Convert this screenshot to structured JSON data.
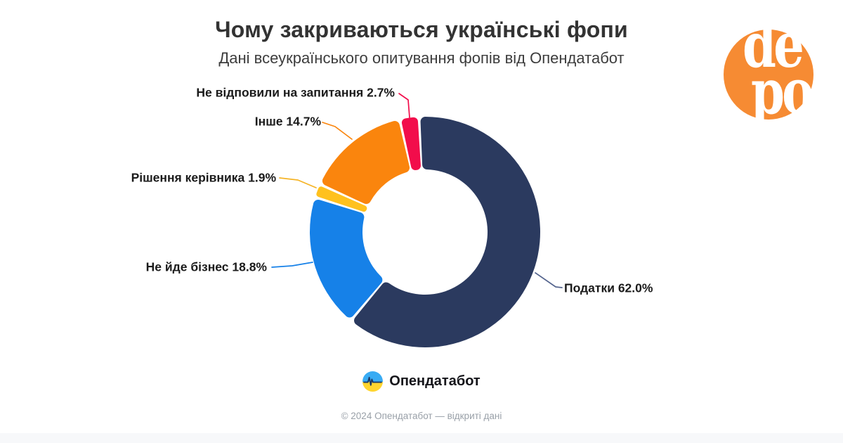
{
  "header": {
    "title": "Чому закриваються українські фопи",
    "subtitle": "Дані всеукраїнського опитування фопів від Опендатабот"
  },
  "chart_data": {
    "type": "pie",
    "subtype": "donut",
    "title": "Чому закриваються українські фопи",
    "subtitle": "Дані всеукраїнського опитування фопів від Опендатабот",
    "unit": "%",
    "start_angle_deg": -3,
    "direction": "clockwise",
    "inner_radius_ratio": 0.54,
    "slices": [
      {
        "label": "Податки",
        "value": 62.0,
        "color": "#2B3A5F"
      },
      {
        "label": "Не йде бізнес",
        "value": 18.8,
        "color": "#1681E8"
      },
      {
        "label": "Рішення керівника",
        "value": 1.9,
        "color": "#FFC11E"
      },
      {
        "label": "Інше",
        "value": 14.7,
        "color": "#FA850D"
      },
      {
        "label": "Не відповили на запитання",
        "value": 2.7,
        "color": "#F20D4B"
      }
    ],
    "callouts": {
      "podatky": "Податки 62.0%",
      "nejde": "Не йде бізнес 18.8%",
      "rishennia": "Рішення керівника 1.9%",
      "inshe": "Інше 14.7%",
      "nevidpovily": "Не відповили на запитання 2.7%"
    },
    "legend_position": "callout-labels",
    "grid": false
  },
  "branding": {
    "depo_line1": "de",
    "depo_line2": "po",
    "depo_color": "#F68B33"
  },
  "source": {
    "logo_text": "Опендатабот",
    "copyright": "© 2024 Опендатабот — відкриті дані",
    "logo_colors": {
      "top": "#39ABF3",
      "bottom": "#FFD52E",
      "pulse": "#1D3A66"
    }
  }
}
